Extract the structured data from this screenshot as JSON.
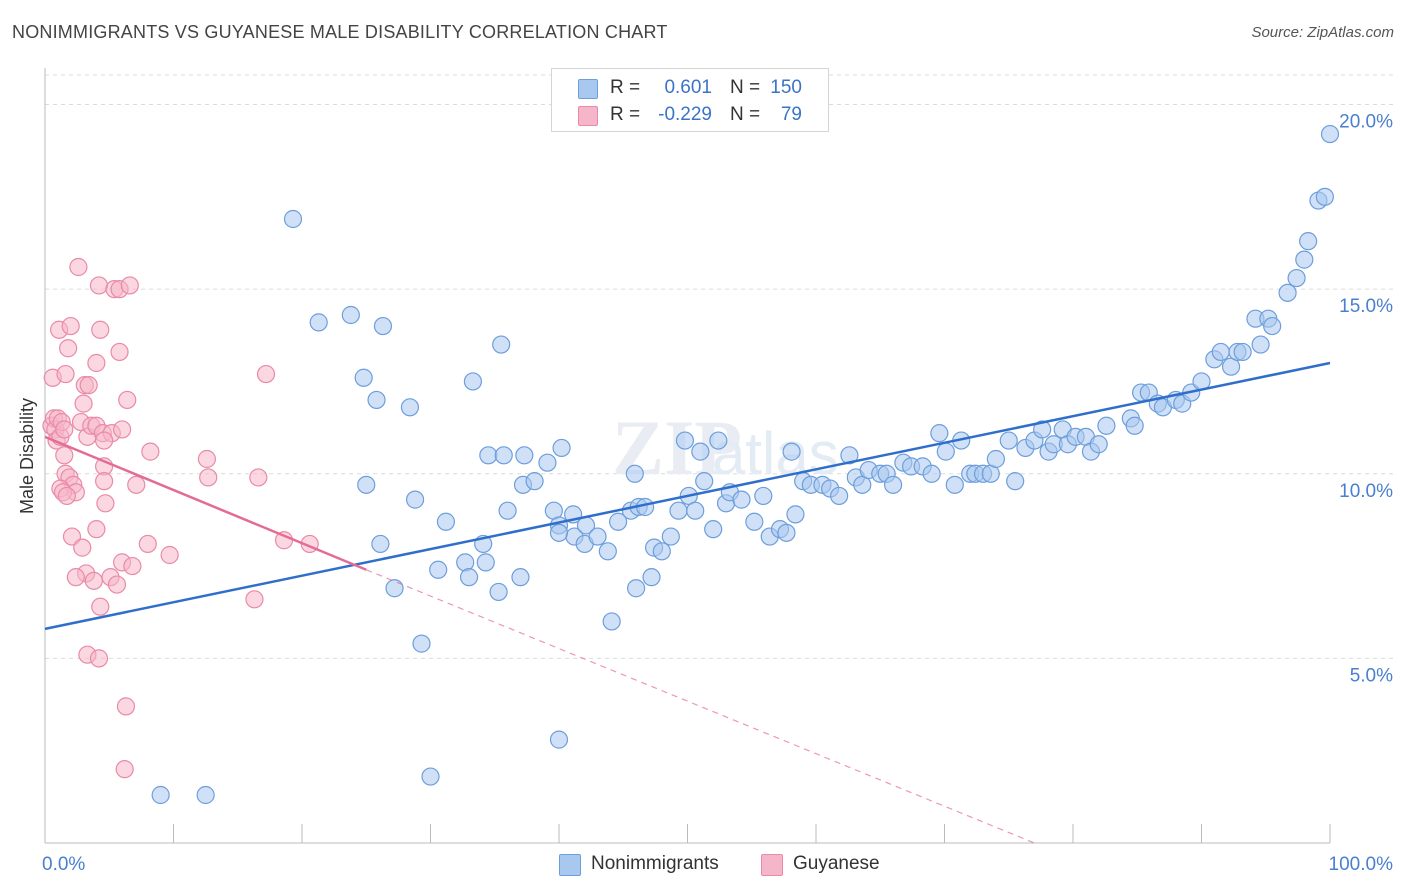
{
  "header": {
    "title": "NONIMMIGRANTS VS GUYANESE MALE DISABILITY CORRELATION CHART",
    "source": "Source: ZipAtlas.com"
  },
  "legend": {
    "rows": [
      {
        "r_label": "R =",
        "r_value": "0.601",
        "n_label": "N =",
        "n_value": "150",
        "color": "#a9c8f0"
      },
      {
        "r_label": "R =",
        "r_value": "-0.229",
        "n_label": "N =",
        "n_value": "79",
        "color": "#f5b6c9"
      }
    ],
    "series_names": [
      "Nonimmigrants",
      "Guyanese"
    ]
  },
  "colors": {
    "blue_fill": "#a9c8f0",
    "blue_stroke": "#6d9edc",
    "blue_line": "#2f6fcb",
    "pink_fill": "#f5b6c9",
    "pink_stroke": "#e98aa8",
    "pink_line": "#e46c94",
    "axis_label": "#4a7fcf"
  },
  "chart_data": {
    "type": "scatter",
    "title": "NONIMMIGRANTS VS GUYANESE MALE DISABILITY CORRELATION CHART",
    "xlabel": "",
    "ylabel": "Male Disability",
    "xlim": [
      0,
      100
    ],
    "ylim": [
      0,
      20.8
    ],
    "x_tick_labels": [
      "0.0%",
      "100.0%"
    ],
    "y_ticks": [
      5,
      10,
      15,
      20
    ],
    "y_tick_labels": [
      "5.0%",
      "10.0%",
      "15.0%",
      "20.0%"
    ],
    "grid": "horizontal dashed",
    "legend_position": "top-center",
    "watermark": "ZIPatlas",
    "series": [
      {
        "name": "Nonimmigrants",
        "r": 0.601,
        "n": 150,
        "trend": {
          "x": [
            0,
            100
          ],
          "y": [
            5.8,
            13.0
          ]
        },
        "points": [
          [
            19.3,
            16.9
          ],
          [
            21.3,
            14.1
          ],
          [
            23.8,
            14.3
          ],
          [
            26.3,
            14.0
          ],
          [
            24.8,
            12.6
          ],
          [
            25.8,
            12.0
          ],
          [
            28.4,
            11.8
          ],
          [
            35.5,
            13.5
          ],
          [
            33.3,
            12.5
          ],
          [
            25.0,
            9.7
          ],
          [
            28.8,
            9.3
          ],
          [
            31.2,
            8.7
          ],
          [
            26.1,
            8.1
          ],
          [
            27.2,
            6.9
          ],
          [
            30.6,
            7.4
          ],
          [
            32.7,
            7.6
          ],
          [
            33.0,
            7.2
          ],
          [
            34.1,
            8.1
          ],
          [
            34.3,
            7.6
          ],
          [
            35.3,
            6.8
          ],
          [
            34.5,
            10.5
          ],
          [
            35.7,
            10.5
          ],
          [
            37.3,
            10.5
          ],
          [
            37.2,
            9.7
          ],
          [
            38.1,
            9.8
          ],
          [
            39.1,
            10.3
          ],
          [
            39.6,
            9.0
          ],
          [
            40.2,
            10.7
          ],
          [
            40.0,
            8.6
          ],
          [
            41.1,
            8.9
          ],
          [
            41.2,
            8.3
          ],
          [
            42.0,
            8.1
          ],
          [
            42.1,
            8.6
          ],
          [
            43.0,
            8.3
          ],
          [
            40.0,
            8.4
          ],
          [
            36.0,
            9.0
          ],
          [
            43.8,
            7.9
          ],
          [
            44.6,
            8.7
          ],
          [
            45.9,
            10.0
          ],
          [
            45.6,
            9.0
          ],
          [
            46.2,
            9.1
          ],
          [
            46.7,
            9.1
          ],
          [
            47.4,
            8.0
          ],
          [
            48.0,
            7.9
          ],
          [
            48.7,
            8.3
          ],
          [
            49.3,
            9.0
          ],
          [
            49.8,
            10.9
          ],
          [
            50.1,
            9.4
          ],
          [
            50.6,
            9.0
          ],
          [
            51.3,
            9.8
          ],
          [
            51.0,
            10.6
          ],
          [
            52.0,
            8.5
          ],
          [
            52.4,
            10.9
          ],
          [
            53.0,
            9.2
          ],
          [
            53.3,
            9.5
          ],
          [
            54.2,
            9.3
          ],
          [
            55.2,
            8.7
          ],
          [
            55.9,
            9.4
          ],
          [
            56.4,
            8.3
          ],
          [
            57.2,
            8.5
          ],
          [
            57.7,
            8.4
          ],
          [
            58.1,
            10.6
          ],
          [
            58.4,
            8.9
          ],
          [
            59.0,
            9.8
          ],
          [
            59.6,
            9.7
          ],
          [
            60.5,
            9.7
          ],
          [
            61.1,
            9.6
          ],
          [
            61.8,
            9.4
          ],
          [
            62.6,
            10.5
          ],
          [
            63.1,
            9.9
          ],
          [
            63.6,
            9.7
          ],
          [
            64.1,
            10.1
          ],
          [
            65.0,
            10.0
          ],
          [
            65.5,
            10.0
          ],
          [
            66.0,
            9.7
          ],
          [
            66.8,
            10.3
          ],
          [
            67.4,
            10.2
          ],
          [
            68.3,
            10.2
          ],
          [
            69.0,
            10.0
          ],
          [
            69.6,
            11.1
          ],
          [
            70.1,
            10.6
          ],
          [
            70.8,
            9.7
          ],
          [
            71.3,
            10.9
          ],
          [
            72.0,
            10.0
          ],
          [
            72.4,
            10.0
          ],
          [
            73.0,
            10.0
          ],
          [
            73.6,
            10.0
          ],
          [
            74.0,
            10.4
          ],
          [
            75.0,
            10.9
          ],
          [
            75.5,
            9.8
          ],
          [
            76.3,
            10.7
          ],
          [
            77.0,
            10.9
          ],
          [
            77.6,
            11.2
          ],
          [
            78.1,
            10.6
          ],
          [
            78.5,
            10.8
          ],
          [
            79.2,
            11.2
          ],
          [
            79.6,
            10.8
          ],
          [
            80.2,
            11.0
          ],
          [
            81.0,
            11.0
          ],
          [
            81.4,
            10.6
          ],
          [
            82.0,
            10.8
          ],
          [
            82.6,
            11.3
          ],
          [
            84.5,
            11.5
          ],
          [
            84.8,
            11.3
          ],
          [
            85.3,
            12.2
          ],
          [
            85.9,
            12.2
          ],
          [
            86.6,
            11.9
          ],
          [
            87.0,
            11.8
          ],
          [
            88.0,
            12.0
          ],
          [
            88.5,
            11.9
          ],
          [
            89.2,
            12.2
          ],
          [
            90.0,
            12.5
          ],
          [
            91.0,
            13.1
          ],
          [
            91.5,
            13.3
          ],
          [
            92.3,
            12.9
          ],
          [
            92.8,
            13.3
          ],
          [
            93.2,
            13.3
          ],
          [
            94.2,
            14.2
          ],
          [
            94.6,
            13.5
          ],
          [
            95.2,
            14.2
          ],
          [
            95.5,
            14.0
          ],
          [
            96.7,
            14.9
          ],
          [
            97.4,
            15.3
          ],
          [
            98.0,
            15.8
          ],
          [
            98.3,
            16.3
          ],
          [
            99.1,
            17.4
          ],
          [
            99.6,
            17.5
          ],
          [
            100.0,
            19.2
          ],
          [
            9.0,
            1.3
          ],
          [
            12.5,
            1.3
          ],
          [
            30.0,
            1.8
          ],
          [
            40.0,
            2.8
          ],
          [
            29.3,
            5.4
          ],
          [
            44.1,
            6.0
          ],
          [
            46.0,
            6.9
          ],
          [
            47.2,
            7.2
          ],
          [
            37.0,
            7.2
          ]
        ]
      },
      {
        "name": "Guyanese",
        "r": -0.229,
        "n": 79,
        "trend": {
          "x": [
            0,
            25
          ],
          "y": [
            11.0,
            7.4
          ]
        },
        "trend_extension": {
          "x": [
            25,
            77
          ],
          "y": [
            7.4,
            0
          ]
        },
        "points": [
          [
            0.5,
            11.3
          ],
          [
            0.7,
            11.5
          ],
          [
            0.8,
            11.2
          ],
          [
            0.9,
            10.9
          ],
          [
            1.0,
            11.5
          ],
          [
            1.2,
            11.0
          ],
          [
            1.3,
            11.4
          ],
          [
            1.5,
            11.2
          ],
          [
            0.6,
            12.6
          ],
          [
            1.1,
            13.9
          ],
          [
            1.6,
            12.7
          ],
          [
            1.8,
            13.4
          ],
          [
            2.0,
            14.0
          ],
          [
            2.6,
            15.6
          ],
          [
            3.1,
            12.4
          ],
          [
            3.4,
            12.4
          ],
          [
            4.2,
            15.1
          ],
          [
            5.4,
            15.0
          ],
          [
            5.8,
            15.0
          ],
          [
            6.6,
            15.1
          ],
          [
            4.3,
            13.9
          ],
          [
            4.0,
            13.0
          ],
          [
            5.8,
            13.3
          ],
          [
            6.4,
            12.0
          ],
          [
            3.0,
            11.9
          ],
          [
            2.8,
            11.4
          ],
          [
            3.3,
            11.0
          ],
          [
            3.6,
            11.3
          ],
          [
            4.0,
            11.3
          ],
          [
            4.5,
            11.1
          ],
          [
            5.2,
            11.1
          ],
          [
            6.0,
            11.2
          ],
          [
            4.6,
            10.9
          ],
          [
            1.5,
            10.5
          ],
          [
            1.6,
            10.0
          ],
          [
            1.9,
            9.9
          ],
          [
            2.2,
            9.7
          ],
          [
            2.4,
            9.5
          ],
          [
            1.2,
            9.6
          ],
          [
            1.4,
            9.5
          ],
          [
            1.7,
            9.4
          ],
          [
            4.6,
            10.2
          ],
          [
            4.6,
            9.8
          ],
          [
            7.1,
            9.7
          ],
          [
            4.7,
            9.2
          ],
          [
            4.0,
            8.5
          ],
          [
            2.1,
            8.3
          ],
          [
            2.9,
            8.0
          ],
          [
            8.2,
            10.6
          ],
          [
            12.6,
            10.4
          ],
          [
            12.7,
            9.9
          ],
          [
            17.2,
            12.7
          ],
          [
            16.6,
            9.9
          ],
          [
            8.0,
            8.1
          ],
          [
            9.7,
            7.8
          ],
          [
            6.0,
            7.6
          ],
          [
            6.8,
            7.5
          ],
          [
            5.1,
            7.2
          ],
          [
            5.6,
            7.0
          ],
          [
            3.2,
            7.3
          ],
          [
            3.8,
            7.1
          ],
          [
            2.4,
            7.2
          ],
          [
            4.3,
            6.4
          ],
          [
            16.3,
            6.6
          ],
          [
            18.6,
            8.2
          ],
          [
            20.6,
            8.1
          ],
          [
            3.3,
            5.1
          ],
          [
            4.2,
            5.0
          ],
          [
            6.3,
            3.7
          ],
          [
            6.2,
            2.0
          ]
        ]
      }
    ]
  }
}
